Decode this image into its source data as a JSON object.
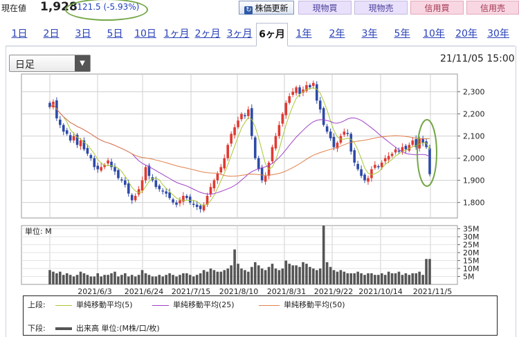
{
  "quote": {
    "label": "現在値",
    "price": "1,928",
    "change": "-121.5 (-5.93%)"
  },
  "buttons": {
    "refresh": "株価更新",
    "buy_cash": "現物買",
    "sell_cash": "現物売",
    "buy_credit": "信用買",
    "sell_credit": "信用売"
  },
  "tabs": [
    {
      "label": "1日"
    },
    {
      "label": "2日"
    },
    {
      "label": "3日"
    },
    {
      "label": "5日"
    },
    {
      "label": "10日"
    },
    {
      "label": "1ヶ月"
    },
    {
      "label": "2ヶ月"
    },
    {
      "label": "3ヶ月"
    },
    {
      "label": "6ヶ月",
      "active": true
    },
    {
      "label": "1年"
    },
    {
      "label": "2年"
    },
    {
      "label": "3年"
    },
    {
      "label": "5年"
    },
    {
      "label": "10年"
    },
    {
      "label": "20年"
    },
    {
      "label": "30年"
    }
  ],
  "period_select": {
    "value": "日足"
  },
  "timestamp": "21/11/05 15:00",
  "colors": {
    "up": "#e03a32",
    "down": "#2d4aa8",
    "ma5": "#a8c832",
    "ma25": "#a040c8",
    "ma50": "#e0804a",
    "volume": "#555555",
    "highlight": "#73a645"
  },
  "chart_data": {
    "type": "candlestick",
    "price_axis": {
      "ticks": [
        "2,300",
        "2,200",
        "2,100",
        "2,000",
        "1,900",
        "1,800"
      ],
      "ylim": [
        1730,
        2380
      ]
    },
    "volume_axis": {
      "unit_label": "単位: M",
      "ticks": [
        "35M",
        "30M",
        "25M",
        "20M",
        "15M",
        "10M",
        "5M"
      ],
      "ylim": [
        0,
        37
      ]
    },
    "x_labels": [
      "2021/6/3",
      "2021/6/24",
      "2021/7/15",
      "2021/8/10",
      "2021/8/31",
      "2021/9/22",
      "2021/10/14",
      "2021/11/5"
    ],
    "legend": {
      "upper_label": "上段:",
      "lower_label": "下段:",
      "series": [
        {
          "name": "単純移動平均(5)",
          "color": "#a8c832"
        },
        {
          "name": "単純移動平均(25)",
          "color": "#a040c8"
        },
        {
          "name": "単純移動平均(50)",
          "color": "#e0804a"
        }
      ],
      "volume_series": "出来高 単位:(M株/口/枚)"
    },
    "close": [
      2230,
      2255,
      2180,
      2150,
      2120,
      2110,
      2080,
      2100,
      2060,
      2080,
      2040,
      2020,
      2000,
      1960,
      1950,
      1960,
      1970,
      1990,
      1960,
      1940,
      1910,
      1900,
      1880,
      1840,
      1810,
      1830,
      1860,
      1900,
      1960,
      1920,
      1900,
      1870,
      1860,
      1850,
      1840,
      1820,
      1800,
      1790,
      1810,
      1830,
      1820,
      1800,
      1790,
      1780,
      1770,
      1790,
      1830,
      1870,
      1900,
      1930,
      1960,
      2000,
      2060,
      2110,
      2140,
      2170,
      2200,
      2190,
      2220,
      2100,
      2000,
      1950,
      1900,
      1920,
      1980,
      2050,
      2100,
      2150,
      2200,
      2250,
      2280,
      2300,
      2320,
      2290,
      2310,
      2330,
      2320,
      2340,
      2260,
      2220,
      2150,
      2120,
      2090,
      2050,
      2070,
      2100,
      2120,
      2110,
      2030,
      1980,
      1950,
      1920,
      1900,
      1910,
      1950,
      1970,
      1960,
      1980,
      2000,
      2010,
      2020,
      2040,
      2030,
      2050,
      2040,
      2060,
      2080,
      2050,
      2090,
      2070,
      2050,
      1928
    ],
    "volume": [
      9,
      8,
      7,
      8,
      6,
      7,
      6,
      5,
      6,
      8,
      7,
      6,
      5,
      5,
      7,
      5,
      6,
      6,
      7,
      8,
      5,
      6,
      7,
      5,
      6,
      5,
      6,
      9,
      7,
      6,
      5,
      5,
      6,
      5,
      6,
      7,
      6,
      5,
      6,
      7,
      7,
      6,
      5,
      6,
      7,
      9,
      8,
      10,
      9,
      8,
      8,
      9,
      10,
      12,
      22,
      13,
      10,
      9,
      8,
      11,
      14,
      12,
      10,
      9,
      11,
      13,
      10,
      9,
      10,
      15,
      13,
      12,
      12,
      11,
      14,
      13,
      11,
      10,
      9,
      10,
      37,
      14,
      11,
      9,
      8,
      9,
      8,
      7,
      7,
      7,
      8,
      7,
      6,
      7,
      7,
      6,
      6,
      7,
      6,
      8,
      7,
      7,
      8,
      6,
      7,
      6,
      7,
      7,
      8,
      6,
      16,
      16
    ]
  }
}
